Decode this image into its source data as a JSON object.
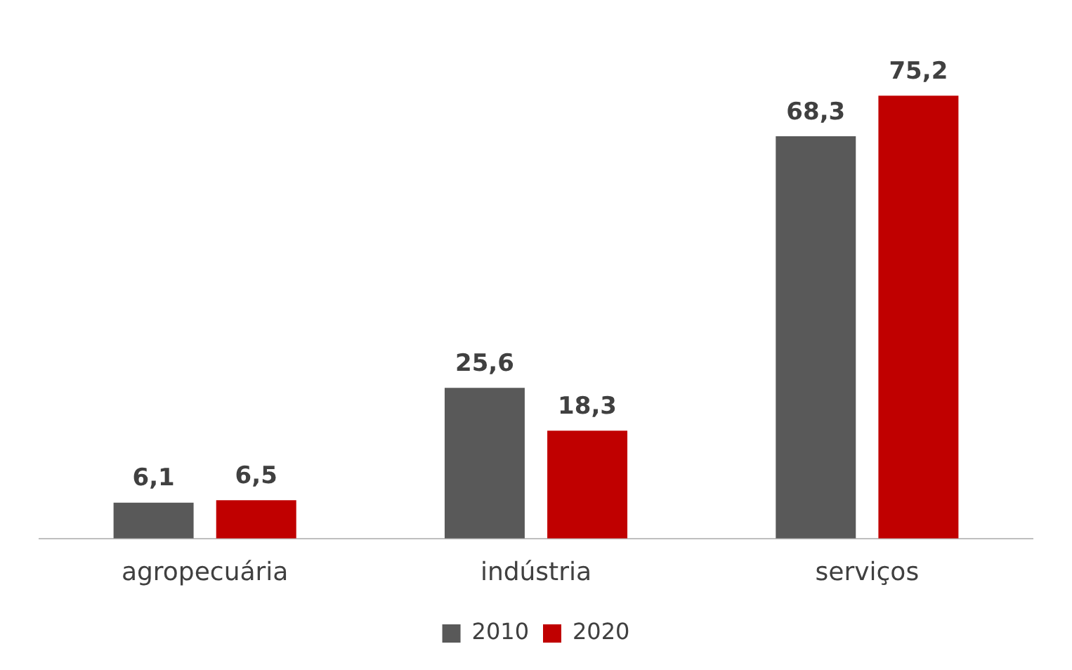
{
  "chart_data": {
    "type": "bar",
    "categories": [
      "agropecuária",
      "indústria",
      "serviços"
    ],
    "series": [
      {
        "name": "2010",
        "color": "#595959",
        "values": [
          6.1,
          25.6,
          68.3
        ],
        "value_labels": [
          "6,1",
          "25,6",
          "68,3"
        ]
      },
      {
        "name": "2020",
        "color": "#c00000",
        "values": [
          6.5,
          18.3,
          75.2
        ],
        "value_labels": [
          "6,5",
          "18,3",
          "75,2"
        ]
      }
    ],
    "legend": "bottom",
    "grid": false
  }
}
